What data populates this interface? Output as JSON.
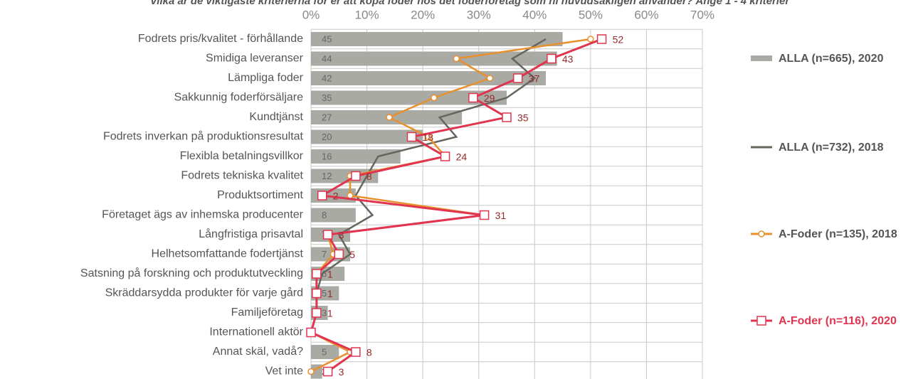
{
  "chart_data": {
    "type": "bar-line",
    "title": "Vilka är de viktigaste kriterierna för er att köpa foder hos det foderföretag som ni huvudsakligen använder? Ange 1 - 4 kriterier",
    "categories": [
      "Fodrets pris/kvalitet - förhållande",
      "Smidiga leveranser",
      "Lämpliga foder",
      "Sakkunnig foderförsäljare",
      "Kundtjänst",
      "Fodrets inverkan på produktionsresultat",
      "Flexibla betalningsvillkor",
      "Fodrets tekniska kvalitet",
      "Produktsortiment",
      "Företaget ägs av inhemska producenter",
      "Långfristiga prisavtal",
      "Helhetsomfattande fodertjänst",
      "Satsning på forskning och produktutveckling",
      "Skräddarsydda produkter för varje gård",
      "Familjeföretag",
      "Internationell aktör",
      "Annat skäl, vadå?",
      "Vet inte"
    ],
    "xlim": [
      0,
      70
    ],
    "xticks": [
      {
        "value": 0,
        "label": "0%"
      },
      {
        "value": 10,
        "label": "10%"
      },
      {
        "value": 20,
        "label": "20%"
      },
      {
        "value": 30,
        "label": "30%"
      },
      {
        "value": 40,
        "label": "40%"
      },
      {
        "value": 50,
        "label": "50%"
      },
      {
        "value": 60,
        "label": "60%"
      },
      {
        "value": 70,
        "label": "70%"
      }
    ],
    "grid": true,
    "legend": "right",
    "series": [
      {
        "name": "ALLA (n=665), 2020",
        "kind": "bar",
        "color": "#aaaaa4",
        "values": [
          45,
          44,
          42,
          35,
          27,
          20,
          16,
          12,
          8,
          8,
          7,
          7,
          6,
          5,
          3,
          0,
          5,
          2
        ]
      },
      {
        "name": "ALLA (n=732), 2018",
        "kind": "line",
        "color": "#66665f",
        "values": [
          42,
          36,
          40,
          35,
          23,
          26,
          12,
          10,
          8,
          11,
          5,
          7,
          2,
          1,
          1,
          0,
          8,
          3
        ]
      },
      {
        "name": "A-Foder (n=135), 2018",
        "kind": "line",
        "color": "#e8902c",
        "values": [
          50,
          26,
          32,
          22,
          14,
          21,
          24,
          7,
          7,
          31,
          3,
          4,
          1,
          1,
          1,
          0,
          7,
          0
        ]
      },
      {
        "name": "A-Foder (n=116), 2020",
        "kind": "line",
        "color": "#e0344f",
        "values": [
          52,
          43,
          37,
          29,
          35,
          18,
          24,
          8,
          2,
          31,
          3,
          5,
          1,
          1,
          1,
          0,
          8,
          3
        ]
      }
    ]
  }
}
